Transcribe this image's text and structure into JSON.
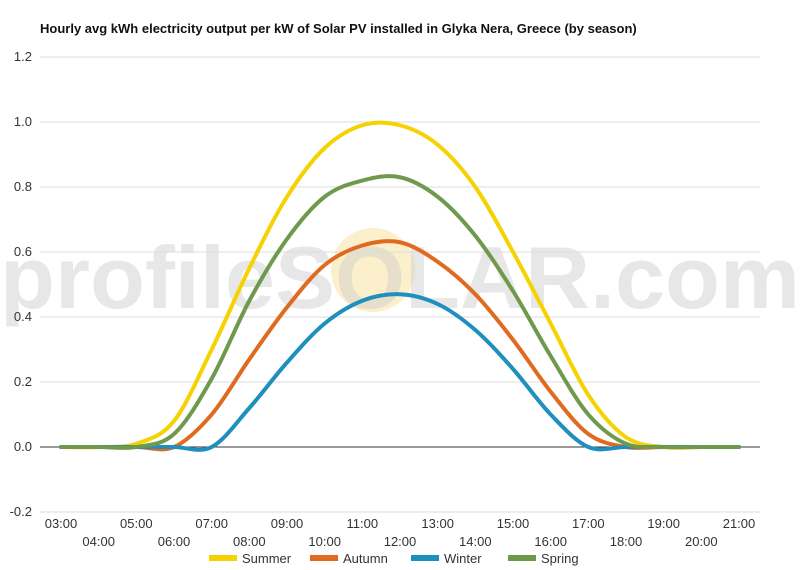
{
  "chart_data": {
    "type": "line",
    "title": "Hourly avg kWh electricity output per kW of Solar PV installed in Glyka Nera, Greece (by season)",
    "xlabel": "",
    "ylabel": "",
    "ylim": [
      -0.2,
      1.2
    ],
    "yticks": [
      "-0.2",
      "0.0",
      "0.2",
      "0.4",
      "0.6",
      "0.8",
      "1.0",
      "1.2"
    ],
    "x": [
      "03:00",
      "04:00",
      "05:00",
      "06:00",
      "07:00",
      "08:00",
      "09:00",
      "10:00",
      "11:00",
      "12:00",
      "13:00",
      "14:00",
      "15:00",
      "16:00",
      "17:00",
      "18:00",
      "19:00",
      "20:00",
      "21:00"
    ],
    "grid": true,
    "legend": "bottom",
    "watermark": "profileSOLAR.com",
    "series": [
      {
        "name": "Summer",
        "color": "#f5d200",
        "values": [
          0.0,
          0.0,
          0.01,
          0.08,
          0.3,
          0.55,
          0.77,
          0.92,
          0.99,
          0.99,
          0.93,
          0.8,
          0.6,
          0.38,
          0.16,
          0.03,
          0.0,
          0.0,
          0.0
        ]
      },
      {
        "name": "Autumn",
        "color": "#e06a1f",
        "values": [
          0.0,
          0.0,
          0.0,
          0.0,
          0.1,
          0.27,
          0.43,
          0.56,
          0.62,
          0.63,
          0.57,
          0.47,
          0.33,
          0.17,
          0.04,
          0.0,
          0.0,
          0.0,
          0.0
        ]
      },
      {
        "name": "Winter",
        "color": "#1f8fbd",
        "values": [
          0.0,
          0.0,
          0.0,
          0.0,
          0.0,
          0.12,
          0.26,
          0.38,
          0.45,
          0.47,
          0.44,
          0.36,
          0.24,
          0.1,
          0.0,
          0.0,
          0.0,
          0.0,
          0.0
        ]
      },
      {
        "name": "Spring",
        "color": "#6f9a4e",
        "values": [
          0.0,
          0.0,
          0.0,
          0.04,
          0.21,
          0.45,
          0.64,
          0.77,
          0.82,
          0.83,
          0.77,
          0.65,
          0.48,
          0.28,
          0.1,
          0.01,
          0.0,
          0.0,
          0.0
        ]
      }
    ]
  }
}
